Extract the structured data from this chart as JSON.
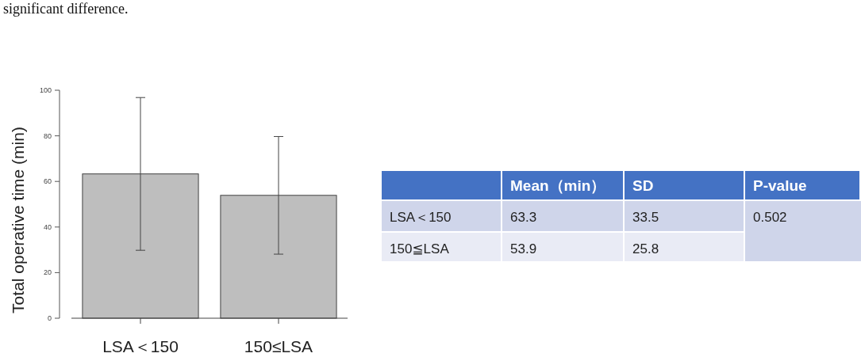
{
  "chart_data": [
    {
      "type": "bar",
      "ylabel": "Total operative time (min)",
      "categories": [
        "LSA＜150",
        "150≤LSA"
      ],
      "values": [
        63.3,
        53.9
      ],
      "errors": [
        33.5,
        25.8
      ],
      "color": "#bebebe",
      "ylim": [
        0,
        100
      ],
      "yticks": [
        0,
        20,
        40,
        60,
        80,
        100
      ],
      "annotations": [
        "significant difference."
      ]
    },
    {
      "type": "other",
      "annotations": [
        "Mean（min）",
        "SD",
        "P-value",
        "LSA＜150",
        "63.3",
        "33.5",
        "0.502",
        "150≦LSA",
        "53.9",
        "25.8"
      ]
    }
  ]
}
